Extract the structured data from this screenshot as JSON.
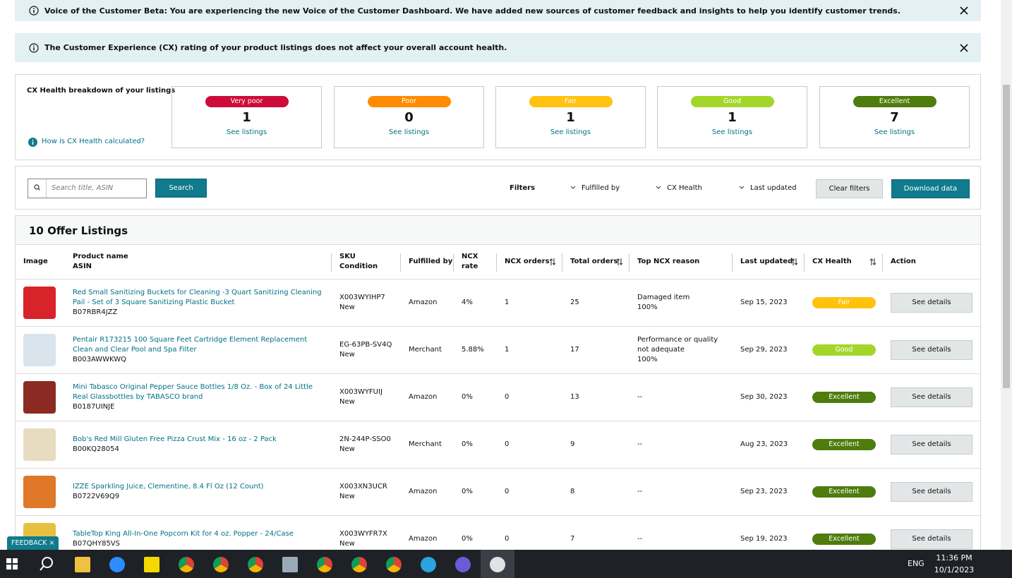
{
  "banners": [
    {
      "text": "Voice of the Customer Beta: You are experiencing the new Voice of the Customer Dashboard. We have added new sources of customer feedback and insights to help you identify customer trends."
    },
    {
      "text": "The Customer Experience (CX) rating of your product listings does not affect your overall account health."
    }
  ],
  "cx_health": {
    "title": "CX Health breakdown of your listings",
    "help_link": "How is CX Health calculated?",
    "tiles": [
      {
        "label": "Very poor",
        "count": 1,
        "link": "See listings",
        "color": "#cc0c39"
      },
      {
        "label": "Poor",
        "count": 0,
        "link": "See listings",
        "color": "#ff8c00"
      },
      {
        "label": "Fair",
        "count": 1,
        "link": "See listings",
        "color": "#ffc20e"
      },
      {
        "label": "Good",
        "count": 1,
        "link": "See listings",
        "color": "#a4d62a"
      },
      {
        "label": "Excellent",
        "count": 7,
        "link": "See listings",
        "color": "#4e7c0d"
      }
    ]
  },
  "search": {
    "placeholder": "Search title, ASIN",
    "button": "Search",
    "filters_label": "Filters",
    "filters": [
      "Fulfilled by",
      "CX Health",
      "Last updated"
    ],
    "clear": "Clear filters",
    "download": "Download data"
  },
  "listings": {
    "title": "10 Offer Listings",
    "columns": [
      [
        "Image"
      ],
      [
        "Product name",
        "ASIN"
      ],
      [
        "SKU",
        "Condition"
      ],
      [
        "Fulfilled by"
      ],
      [
        "NCX rate"
      ],
      [
        "NCX orders"
      ],
      [
        "Total orders"
      ],
      [
        "Top NCX reason"
      ],
      [
        "Last updated"
      ],
      [
        "CX Health"
      ],
      [
        "Action"
      ]
    ],
    "rows": [
      {
        "name": "Red Small Sanitizing Buckets for Cleaning -3 Quart Sanitizing Cleaning Pail - Set of 3 Square Sanitizing Plastic Bucket",
        "asin": "B07RBR4JZZ",
        "sku": "X003WYIHP7",
        "condition": "New",
        "fulfilled": "Amazon",
        "ncx_rate": "4%",
        "ncx_orders": 1,
        "total_orders": 25,
        "reason": [
          "Damaged item",
          "100%"
        ],
        "updated": "Sep 15, 2023",
        "health": "Fair",
        "action": "See details"
      },
      {
        "name": "Pentair R173215 100 Square Feet Cartridge Element Replacement Clean and Clear Pool and Spa Filter",
        "asin": "B003AWWKWQ",
        "sku": "EG-63PB-SV4Q",
        "condition": "New",
        "fulfilled": "Merchant",
        "ncx_rate": "5.88%",
        "ncx_orders": 1,
        "total_orders": 17,
        "reason": [
          "Performance or quality not adequate",
          "100%"
        ],
        "updated": "Sep 29, 2023",
        "health": "Good",
        "action": "See details"
      },
      {
        "name": "Mini Tabasco Original Pepper Sauce Bottles 1/8 Oz. - Box of 24 Little Real Glassbottles by TABASCO brand",
        "asin": "B0187UINJE",
        "sku": "X003WYFUIJ",
        "condition": "New",
        "fulfilled": "Amazon",
        "ncx_rate": "0%",
        "ncx_orders": 0,
        "total_orders": 13,
        "reason": [
          "--"
        ],
        "updated": "Sep 30, 2023",
        "health": "Excellent",
        "action": "See details"
      },
      {
        "name": "Bob's Red Mill Gluten Free Pizza Crust Mix - 16 oz - 2 Pack",
        "asin": "B00KQ28054",
        "sku": "2N-244P-SSO0",
        "condition": "New",
        "fulfilled": "Merchant",
        "ncx_rate": "0%",
        "ncx_orders": 0,
        "total_orders": 9,
        "reason": [
          "--"
        ],
        "updated": "Aug 23, 2023",
        "health": "Excellent",
        "action": "See details"
      },
      {
        "name": "IZZE Sparkling Juice, Clementine, 8.4 Fl Oz (12 Count)",
        "asin": "B0722V69Q9",
        "sku": "X003XN3UCR",
        "condition": "New",
        "fulfilled": "Amazon",
        "ncx_rate": "0%",
        "ncx_orders": 0,
        "total_orders": 8,
        "reason": [
          "--"
        ],
        "updated": "Sep 23, 2023",
        "health": "Excellent",
        "action": "See details"
      },
      {
        "name": "TableTop King All-In-One Popcorn Kit for 4 oz. Popper - 24/Case",
        "asin": "B07QHY85VS",
        "sku": "X003WYFR7X",
        "condition": "New",
        "fulfilled": "Amazon",
        "ncx_rate": "0%",
        "ncx_orders": 0,
        "total_orders": 7,
        "reason": [
          "--"
        ],
        "updated": "Sep 19, 2023",
        "health": "Excellent",
        "action": "See details"
      }
    ]
  },
  "feedback": "FEEDBACK",
  "taskbar": {
    "language": "ENG",
    "time": "11:36 PM",
    "date": "10/1/2023"
  }
}
